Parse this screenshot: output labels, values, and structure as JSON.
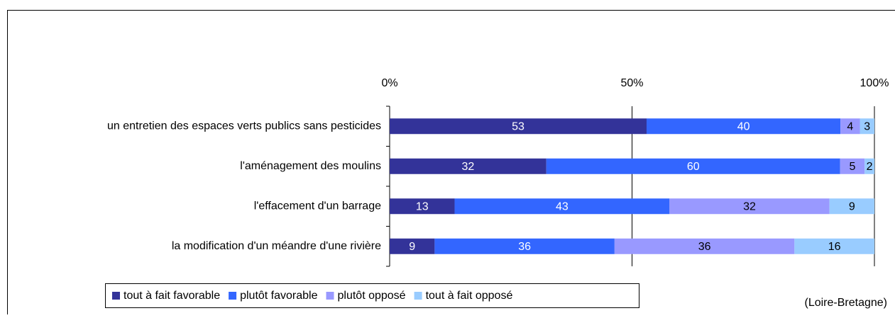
{
  "chart_data": {
    "type": "bar",
    "orientation": "horizontal",
    "stacking": "percent",
    "categories": [
      "un entretien des espaces verts publics sans pesticides",
      "l'aménagement des moulins",
      "l'effacement d'un barrage",
      "la modification d'un méandre d'une rivière"
    ],
    "series": [
      {
        "name": "tout à fait favorable",
        "color": "#333399",
        "values": [
          53,
          32,
          13,
          9
        ]
      },
      {
        "name": "plutôt favorable",
        "color": "#3366ff",
        "values": [
          40,
          60,
          43,
          36
        ]
      },
      {
        "name": "plutôt opposé",
        "color": "#9999ff",
        "values": [
          4,
          5,
          32,
          36
        ]
      },
      {
        "name": "tout à fait opposé",
        "color": "#99ccff",
        "values": [
          3,
          2,
          9,
          16
        ]
      }
    ],
    "xlim": [
      0,
      100
    ],
    "xticks": [
      {
        "value": 0,
        "label": "0%"
      },
      {
        "value": 50,
        "label": "50%"
      },
      {
        "value": 100,
        "label": "100%"
      }
    ],
    "grid": true,
    "legend": "bottom",
    "annotation": "(Loire-Bretagne)"
  }
}
